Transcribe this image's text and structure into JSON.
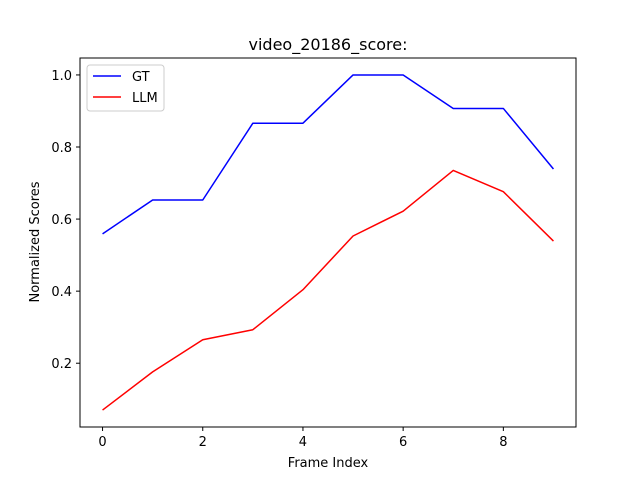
{
  "chart_data": {
    "type": "line",
    "title": "video_20186_score:",
    "xlabel": "Frame Index",
    "ylabel": "Normalized Scores",
    "x": [
      0,
      1,
      2,
      3,
      4,
      5,
      6,
      7,
      8,
      9
    ],
    "xlim": [
      -0.45,
      9.45
    ],
    "ylim": [
      0.023,
      1.047
    ],
    "xticks": [
      "0",
      "2",
      "4",
      "6",
      "8"
    ],
    "yticks": [
      "0.2",
      "0.4",
      "0.6",
      "0.8",
      "1.0"
    ],
    "grid": false,
    "legend_position": "top-left",
    "series": [
      {
        "name": "GT",
        "color": "#0000ff",
        "values": [
          0.559,
          0.653,
          0.653,
          0.866,
          0.866,
          1.0,
          1.0,
          0.907,
          0.907,
          0.739
        ]
      },
      {
        "name": "LLM",
        "color": "#ff0000",
        "values": [
          0.07,
          0.176,
          0.265,
          0.293,
          0.404,
          0.553,
          0.622,
          0.735,
          0.676,
          0.539
        ]
      }
    ]
  }
}
